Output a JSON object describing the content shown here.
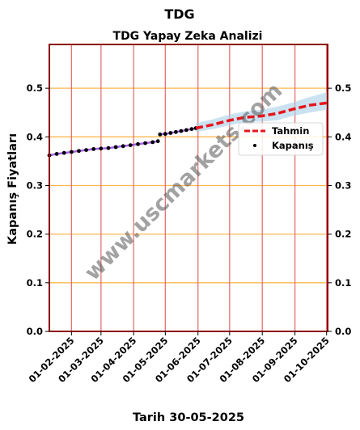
{
  "chart_data": {
    "type": "line",
    "suptitle": "TDG",
    "title": "TDG Yapay Zeka Analizi",
    "ylabel": "Kapanış Fiyatları",
    "xlabel": "Tarih 30-05-2025",
    "watermark": "www.uscmarkets.com",
    "x_range": [
      "2025-01-11",
      "2025-10-02"
    ],
    "ylim": [
      0.0,
      0.59
    ],
    "y_ticks": [
      0.0,
      0.1,
      0.2,
      0.3,
      0.4,
      0.5
    ],
    "y_tick_labels": [
      "0.0",
      "0.1",
      "0.2",
      "0.3",
      "0.4",
      "0.5"
    ],
    "x_ticks": [
      "2025-02-01",
      "2025-03-01",
      "2025-04-01",
      "2025-05-01",
      "2025-06-01",
      "2025-07-01",
      "2025-08-01",
      "2025-09-01",
      "2025-10-01"
    ],
    "x_tick_labels": [
      "01-02-2025",
      "01-03-2025",
      "01-04-2025",
      "01-05-2025",
      "01-06-2025",
      "01-07-2025",
      "01-08-2025",
      "01-09-2025",
      "01-10-2025"
    ],
    "legend_position": "center-right",
    "grid": true,
    "colors": {
      "forecast": "#e8141b",
      "close": "#000000",
      "trend": "#8b2be2",
      "band": "#a8cfe8",
      "grid_h": "#ffb74d",
      "grid_v": "#e57373",
      "frame": "#8b0000"
    },
    "series": [
      {
        "name": "Kapanış",
        "kind": "scatter",
        "segments": [
          [
            [
              "2025-01-11",
              0.362
            ],
            [
              "2025-01-18",
              0.365
            ],
            [
              "2025-01-25",
              0.367
            ],
            [
              "2025-02-01",
              0.369
            ],
            [
              "2025-02-08",
              0.371
            ],
            [
              "2025-02-15",
              0.373
            ],
            [
              "2025-02-22",
              0.375
            ],
            [
              "2025-03-01",
              0.376
            ],
            [
              "2025-03-08",
              0.377
            ],
            [
              "2025-03-15",
              0.379
            ],
            [
              "2025-03-22",
              0.381
            ],
            [
              "2025-03-29",
              0.383
            ],
            [
              "2025-04-05",
              0.385
            ],
            [
              "2025-04-12",
              0.387
            ],
            [
              "2025-04-19",
              0.389
            ],
            [
              "2025-04-24",
              0.391
            ]
          ],
          [
            [
              "2025-04-26",
              0.405
            ],
            [
              "2025-05-01",
              0.406
            ],
            [
              "2025-05-06",
              0.408
            ],
            [
              "2025-05-11",
              0.41
            ],
            [
              "2025-05-16",
              0.412
            ],
            [
              "2025-05-21",
              0.414
            ],
            [
              "2025-05-26",
              0.416
            ],
            [
              "2025-05-30",
              0.418
            ]
          ]
        ]
      },
      {
        "name": "Tahmin",
        "kind": "line",
        "points": [
          [
            "2025-05-30",
            0.418
          ],
          [
            "2025-06-15",
            0.425
          ],
          [
            "2025-07-01",
            0.434
          ],
          [
            "2025-07-15",
            0.44
          ],
          [
            "2025-08-01",
            0.443
          ],
          [
            "2025-08-15",
            0.448
          ],
          [
            "2025-09-01",
            0.458
          ],
          [
            "2025-09-15",
            0.465
          ],
          [
            "2025-10-02",
            0.47
          ]
        ],
        "band_upper": [
          0.428,
          0.436,
          0.446,
          0.452,
          0.456,
          0.462,
          0.472,
          0.482,
          0.492
        ],
        "band_lower": [
          0.41,
          0.416,
          0.424,
          0.43,
          0.432,
          0.434,
          0.444,
          0.45,
          0.456
        ]
      }
    ]
  }
}
